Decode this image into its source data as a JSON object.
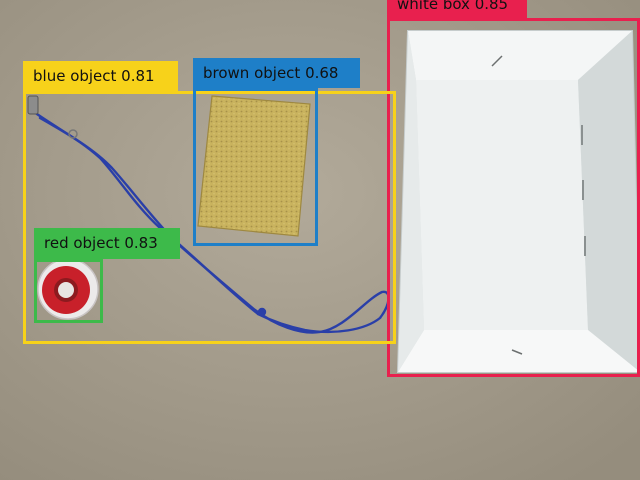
{
  "detections": [
    {
      "label": "white box 0.85",
      "color": "#e8204e"
    },
    {
      "label": "blue object 0.81",
      "color": "#f7d21a"
    },
    {
      "label": "brown object 0.68",
      "color": "#1e7fc8"
    },
    {
      "label": "red object 0.83",
      "color": "#3dba4a"
    }
  ],
  "colors": {
    "table": "#a89f8e",
    "sponge": "#c9b35e",
    "lanyard": "#2a3fa8",
    "tape_red": "#c8202a",
    "box_white": "#eef1f1"
  }
}
